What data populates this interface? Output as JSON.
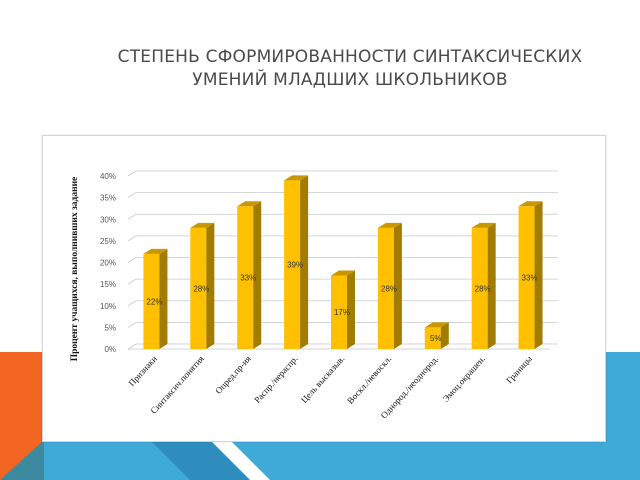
{
  "slide": {
    "title_line1": "СТЕПЕНЬ СФОРМИРОВАННОСТИ СИНТАКСИЧЕСКИХ",
    "title_line2": "УМЕНИЙ МЛАДШИХ ШКОЛЬНИКОВ"
  },
  "colors": {
    "bar_front": "#FFC000",
    "bar_side": "#A27C00",
    "bar_top": "#C99700",
    "deco_blue": "#3FA9D8",
    "deco_blue_dark": "#2B86B5",
    "deco_orange": "#F26522",
    "deco_teal": "#3C8AA0"
  },
  "chart_data": {
    "type": "bar",
    "ylabel": "Процент учащихся, выполнивших задание",
    "categories": [
      "Признаки",
      "Синтаксич.понятия",
      "Опред.пр-ия",
      "Распр./нераспр.",
      "Цель высказыв.",
      "Воскл./невоскл.",
      "Однород./неоднород.",
      "Эмоц.окрашен.",
      "Границы"
    ],
    "values": [
      22,
      28,
      33,
      39,
      17,
      28,
      5,
      28,
      33
    ],
    "data_labels": [
      "22%",
      "28%",
      "33%",
      "39%",
      "17%",
      "28%",
      "5%",
      "28%",
      "33%"
    ],
    "ylim": [
      0,
      40
    ],
    "yticks": [
      "0%",
      "5%",
      "10%",
      "15%",
      "20%",
      "25%",
      "30%",
      "35%",
      "40%"
    ],
    "grid": true,
    "style": "3d-column"
  }
}
